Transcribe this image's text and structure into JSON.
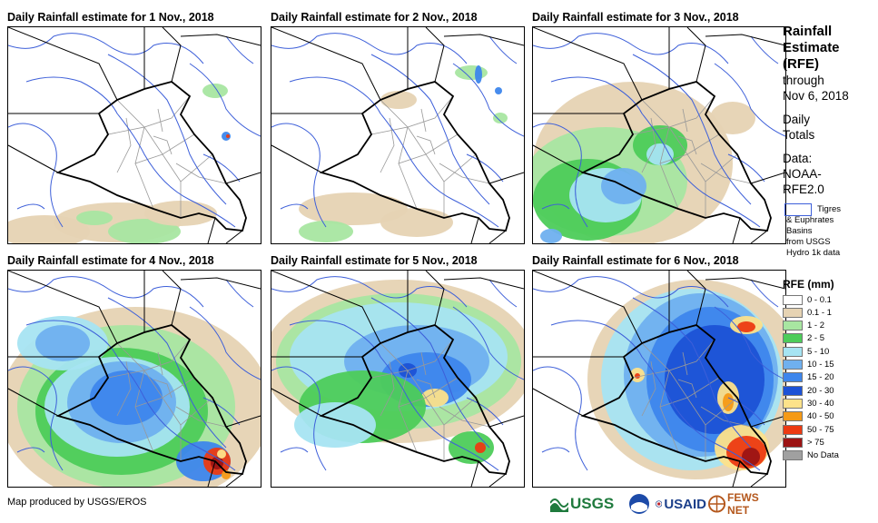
{
  "panels": [
    {
      "title": "Daily Rainfall estimate for 1 Nov., 2018",
      "day": 1
    },
    {
      "title": "Daily Rainfall estimate for 2 Nov., 2018",
      "day": 2
    },
    {
      "title": "Daily Rainfall estimate for 3 Nov., 2018",
      "day": 3
    },
    {
      "title": "Daily Rainfall estimate for 4 Nov., 2018",
      "day": 4
    },
    {
      "title": "Daily Rainfall estimate for 5 Nov., 2018",
      "day": 5
    },
    {
      "title": "Daily Rainfall estimate for 6 Nov., 2018",
      "day": 6
    }
  ],
  "sidebar": {
    "title_line1": "Rainfall",
    "title_line2": "Estimate",
    "title_line3": "(RFE)",
    "through": "through",
    "date": "Nov 6, 2018",
    "daily": "Daily",
    "totals": "Totals",
    "data_label": "Data:",
    "data_source1": "NOAA-",
    "data_source2": "RFE2.0",
    "basin_note1": "Tigres",
    "basin_note2": "& Euphrates",
    "basin_note3": "Basins",
    "basin_note4": "from USGS",
    "basin_note5": "Hydro 1k data"
  },
  "legend": {
    "title": "RFE (mm)",
    "items": [
      {
        "label": "0 - 0.1",
        "color": "#ffffff"
      },
      {
        "label": "0.1 - 1",
        "color": "#e6d3b3"
      },
      {
        "label": "1 - 2",
        "color": "#a8e6a1"
      },
      {
        "label": "2 - 5",
        "color": "#4dcc5a"
      },
      {
        "label": "5 - 10",
        "color": "#a6e4f2"
      },
      {
        "label": "10 - 15",
        "color": "#6fb0ef"
      },
      {
        "label": "15 - 20",
        "color": "#3d86ec"
      },
      {
        "label": "20 - 30",
        "color": "#1c52d6"
      },
      {
        "label": "30 - 40",
        "color": "#fde28a"
      },
      {
        "label": "40 - 50",
        "color": "#f59a16"
      },
      {
        "label": "50 - 75",
        "color": "#ec3a12"
      },
      {
        "label": "> 75",
        "color": "#9c1414"
      },
      {
        "label": "No Data",
        "color": "#a0a0a0"
      }
    ]
  },
  "footer": {
    "credit": "Map produced by USGS/EROS"
  },
  "logos": {
    "usgs": "USGS",
    "usaid": "USAID",
    "fews": "FEWS NET"
  }
}
